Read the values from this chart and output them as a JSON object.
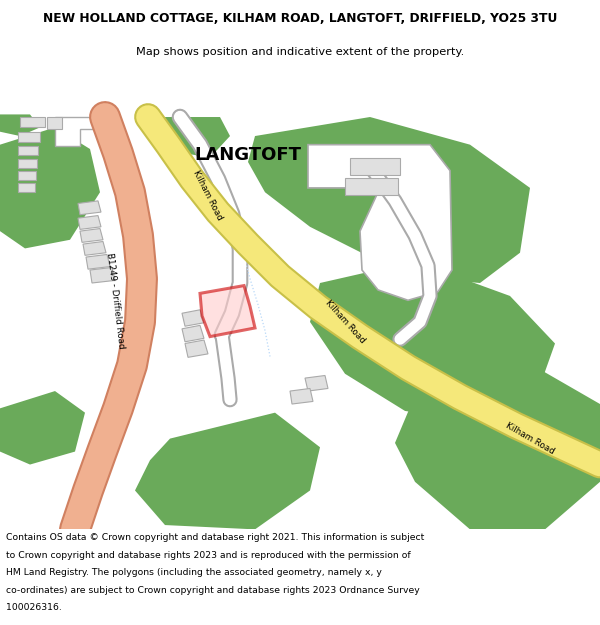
{
  "title": "NEW HOLLAND COTTAGE, KILHAM ROAD, LANGTOFT, DRIFFIELD, YO25 3TU",
  "subtitle": "Map shows position and indicative extent of the property.",
  "footer_line1": "Contains OS data © Crown copyright and database right 2021. This information is subject",
  "footer_line2": "to Crown copyright and database rights 2023 and is reproduced with the permission of",
  "footer_line3": "HM Land Registry. The polygons (including the associated geometry, namely x, y",
  "footer_line4": "co-ordinates) are subject to Crown copyright and database rights 2023 Ordnance Survey",
  "footer_line5": "100026316.",
  "bg_color": "#ffffff",
  "map_bg": "#f7f7f7",
  "road_yellow": "#f5e87a",
  "road_yellow_border": "#c8c048",
  "road_salmon": "#f0b090",
  "road_salmon_border": "#d08060",
  "green_color": "#6aaa5a",
  "building_fill": "#e0e0e0",
  "building_stroke": "#aaaaaa",
  "plot_color": "#cc0000",
  "plot_fill": "#ffcccc",
  "white_road": "#ffffff",
  "white_road_border": "#aaaaaa",
  "langtoft_label": "LANGTOFT",
  "langtoft_fontsize": 13
}
